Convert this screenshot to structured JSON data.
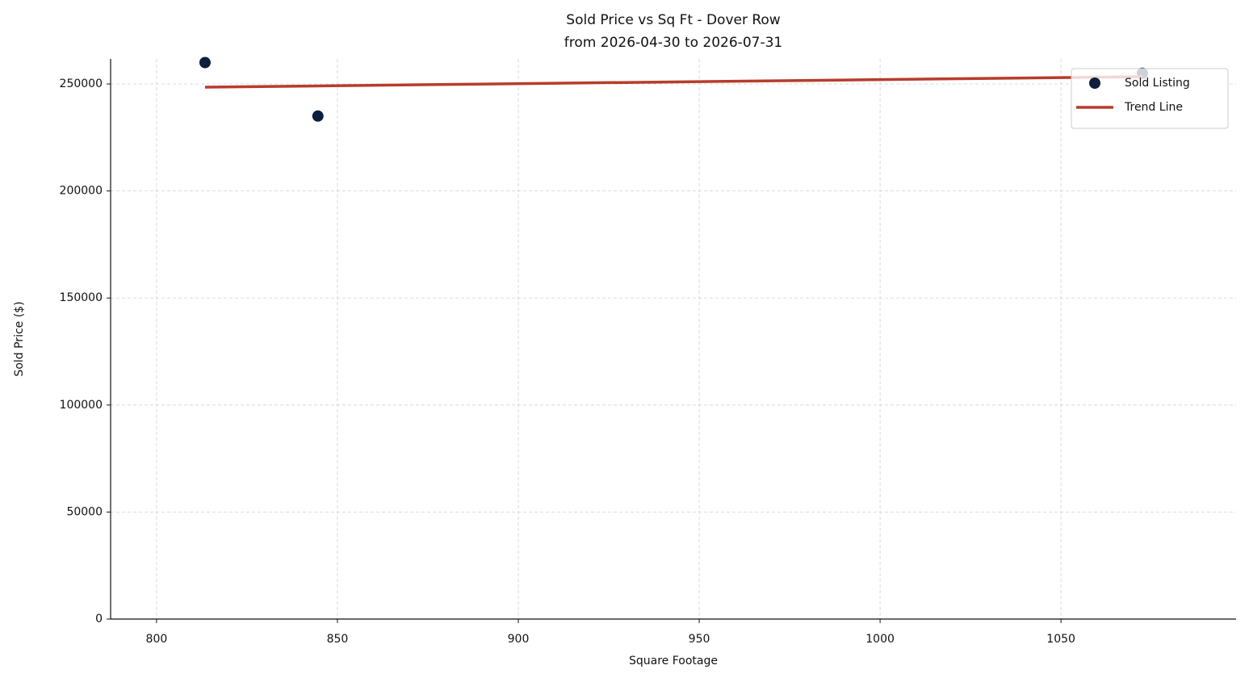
{
  "chart_data": {
    "type": "scatter",
    "title": "Sold Price vs Sq Ft - Dover Row",
    "subtitle": "from 2026-04-30 to 2026-07-31",
    "x_label": "Square Footage",
    "y_label": "Sold Price ($)",
    "series": [
      {
        "name": "Sold Listing",
        "type": "scatter",
        "color": "#0d1f3c",
        "x": [
          813.4,
          844.6,
          1072.5
        ],
        "values": [
          260000,
          235000,
          255000
        ]
      },
      {
        "name": "Trend Line",
        "type": "line",
        "color": "#b83c2b",
        "x": [
          813.4,
          1072.5
        ],
        "values": [
          248500,
          253400
        ]
      }
    ],
    "xlim": [
      787.3,
      1098.4
    ],
    "ylim": [
      0,
      261700
    ],
    "xticks": [
      800,
      850,
      900,
      950,
      1000,
      1050
    ],
    "yticks": [
      0,
      50000,
      100000,
      150000,
      200000,
      250000
    ],
    "grid": true,
    "legend": "upper right"
  }
}
